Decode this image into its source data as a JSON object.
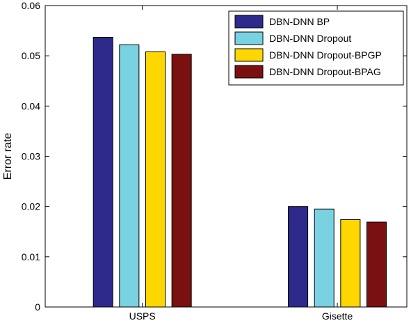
{
  "chart_data": {
    "type": "bar",
    "title": "",
    "xlabel": "",
    "ylabel": "Error rate",
    "categories": [
      "USPS",
      "Gisette"
    ],
    "series": [
      {
        "name": "DBN-DNN BP",
        "color": "#2e2a8c",
        "values": [
          0.0537,
          0.02
        ]
      },
      {
        "name": "DBN-DNN Dropout",
        "color": "#78d2e2",
        "values": [
          0.0522,
          0.0195
        ]
      },
      {
        "name": "DBN-DNN Dropout-BPGP",
        "color": "#ffd700",
        "values": [
          0.0508,
          0.0174
        ]
      },
      {
        "name": "DBN-DNN Dropout-BPAG",
        "color": "#7a1010",
        "values": [
          0.0503,
          0.0169
        ]
      }
    ],
    "ylim": [
      0,
      0.06
    ],
    "yticks": [
      "0",
      "0.01",
      "0.02",
      "0.03",
      "0.04",
      "0.05",
      "0.06"
    ],
    "grid": false,
    "legend_position": "top-right"
  }
}
